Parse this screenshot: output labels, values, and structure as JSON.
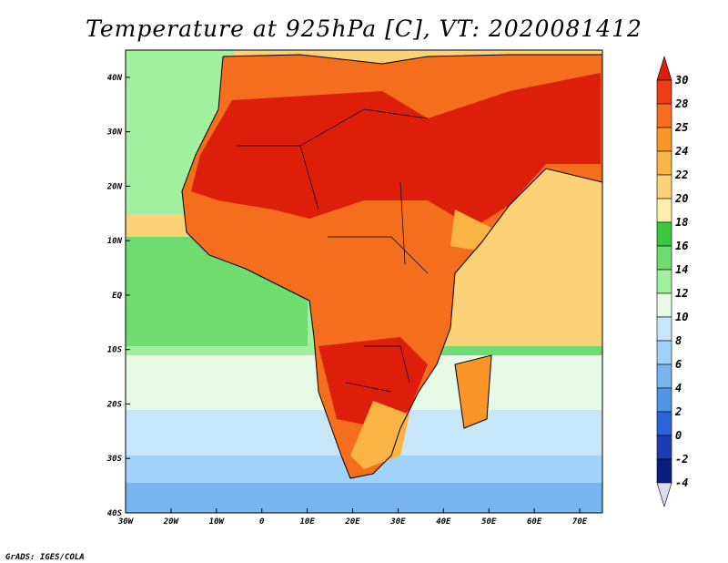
{
  "title": "Temperature at 925hPa [C], VT: 2020081412",
  "credit": "GrADS: IGES/COLA",
  "map": {
    "lon_range": [
      -30,
      75
    ],
    "lat_range": [
      -40,
      45
    ],
    "lon_ticks": [
      {
        "value": -30,
        "label": "30W"
      },
      {
        "value": -20,
        "label": "20W"
      },
      {
        "value": -10,
        "label": "10W"
      },
      {
        "value": 0,
        "label": "0"
      },
      {
        "value": 10,
        "label": "10E"
      },
      {
        "value": 20,
        "label": "20E"
      },
      {
        "value": 30,
        "label": "30E"
      },
      {
        "value": 40,
        "label": "40E"
      },
      {
        "value": 50,
        "label": "50E"
      },
      {
        "value": 60,
        "label": "60E"
      },
      {
        "value": 70,
        "label": "70E"
      }
    ],
    "lat_ticks": [
      {
        "value": 40,
        "label": "40N"
      },
      {
        "value": 30,
        "label": "30N"
      },
      {
        "value": 20,
        "label": "20N"
      },
      {
        "value": 10,
        "label": "10N"
      },
      {
        "value": 0,
        "label": "EQ"
      },
      {
        "value": -10,
        "label": "10S"
      },
      {
        "value": -20,
        "label": "20S"
      },
      {
        "value": -30,
        "label": "30S"
      },
      {
        "value": -40,
        "label": "40S"
      }
    ]
  },
  "colorbar": {
    "levels": [
      "30",
      "28",
      "25",
      "24",
      "22",
      "20",
      "18",
      "16",
      "14",
      "12",
      "10",
      "8",
      "6",
      "4",
      "2",
      "0",
      "-2",
      "-4"
    ],
    "colors": [
      "#dc1e0a",
      "#f03c14",
      "#f56e1e",
      "#fa9628",
      "#fab446",
      "#fcd278",
      "#fdeeaa",
      "#3cc83c",
      "#6edc6e",
      "#a0f0a0",
      "#e6fae6",
      "#c8e6fa",
      "#a0d2fa",
      "#78b4f0",
      "#5096e6",
      "#2864dc",
      "#1e3cb4",
      "#0a1e82",
      "#dcdcf0"
    ]
  },
  "palette": {
    "land_hot": "#dc1e0a",
    "land_warm": "#f03c14",
    "land_mild": "#f56e1e",
    "ocean_warm": "#fdeeaa",
    "ocean_green": "#6edc6e",
    "ocean_cool": "#a0f0a0",
    "ocean_cold": "#c8e6fa",
    "ocean_colder": "#78b4f0",
    "ocean_coldest": "#2864dc",
    "sahara": "#dc1e0a",
    "arabia": "#dc1e0a",
    "central_africa": "#f56e1e",
    "southern_africa": "#f03c14",
    "highlands": "#fab446"
  }
}
